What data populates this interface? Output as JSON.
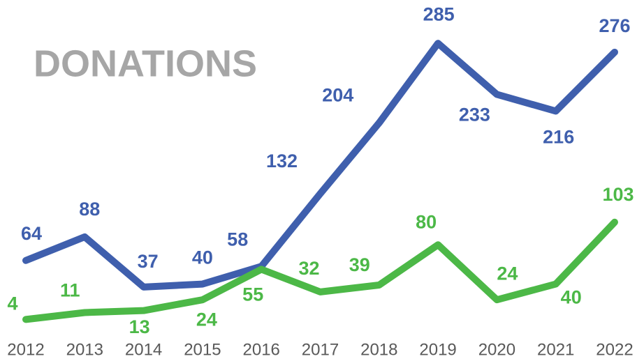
{
  "chart_data": {
    "type": "line",
    "title": "DONATIONS",
    "categories": [
      "2012",
      "2013",
      "2014",
      "2015",
      "2016",
      "2017",
      "2018",
      "2019",
      "2020",
      "2021",
      "2022"
    ],
    "series": [
      {
        "color": "#3f5fad",
        "values": [
          64,
          88,
          37,
          40,
          58,
          132,
          204,
          285,
          233,
          216,
          276
        ]
      },
      {
        "color": "#4cb847",
        "values": [
          4,
          11,
          13,
          24,
          55,
          32,
          39,
          80,
          24,
          40,
          103
        ]
      }
    ],
    "ylim": [
      0,
      300
    ],
    "grid": false
  }
}
